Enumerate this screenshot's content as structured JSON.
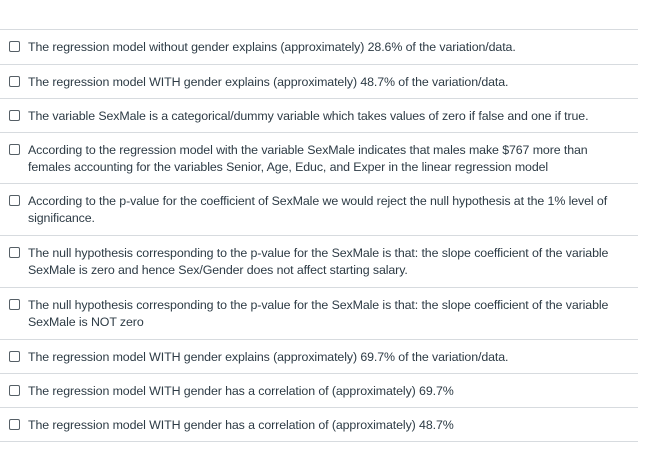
{
  "question": {
    "options": [
      {
        "label": "The regression model without gender explains (approximately) 28.6% of the variation/data.",
        "checked": false
      },
      {
        "label": "The regression model WITH gender explains (approximately) 48.7% of the variation/data.",
        "checked": false
      },
      {
        "label": "The variable SexMale is a categorical/dummy variable which takes values of zero if false and one if true.",
        "checked": false
      },
      {
        "label": "According to the regression model with the variable SexMale indicates that males make $767 more than females accounting for the variables Senior, Age, Educ, and Exper in the linear regression model",
        "checked": false
      },
      {
        "label": "According to the p-value for the coefficient of SexMale we would reject the null hypothesis at the 1% level of significance.",
        "checked": false
      },
      {
        "label": "The null hypothesis corresponding to the p-value for the SexMale is that: the slope coefficient of the variable SexMale is zero and hence Sex/Gender does not affect starting salary.",
        "checked": false
      },
      {
        "label": "The null hypothesis corresponding to the p-value for the SexMale is that: the slope coefficient of the variable SexMale is NOT zero",
        "checked": false
      },
      {
        "label": "The regression model WITH gender explains (approximately) 69.7% of the variation/data.",
        "checked": false
      },
      {
        "label": "The regression model WITH gender has a correlation of (approximately) 69.7%",
        "checked": false
      },
      {
        "label": "The regression model WITH gender has a correlation of (approximately) 48.7%",
        "checked": false
      }
    ]
  }
}
